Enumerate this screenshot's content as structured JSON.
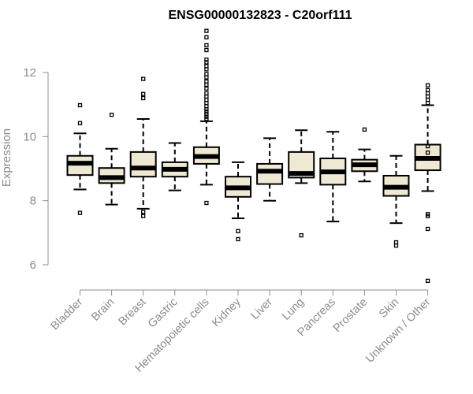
{
  "chart_data": {
    "type": "box",
    "title": "ENSG00000132823 - C20orf111",
    "xlabel": "",
    "ylabel": "Expression",
    "ylim": [
      5.3,
      13.5
    ],
    "yticks": [
      6,
      8,
      10,
      12
    ],
    "grid": false,
    "legend": "none",
    "colors": {
      "box_fill": "#efe8d2",
      "box_stroke": "#000000",
      "axis": "#8c8c8c"
    },
    "categories": [
      "Bladder",
      "Brain",
      "Breast",
      "Gastric",
      "Hematopoietic cells",
      "Kidney",
      "Liver",
      "Lung",
      "Pancreas",
      "Prostate",
      "Skin",
      "Unknown / Other"
    ],
    "boxes": [
      {
        "q1": 8.8,
        "median": 9.17,
        "q3": 9.4,
        "whisker_low": 8.35,
        "whisker_high": 10.1,
        "outliers": [
          7.62,
          10.42,
          10.98
        ]
      },
      {
        "q1": 8.55,
        "median": 8.72,
        "q3": 9.02,
        "whisker_low": 7.88,
        "whisker_high": 9.62,
        "outliers": [
          10.68
        ]
      },
      {
        "q1": 8.75,
        "median": 9.02,
        "q3": 9.52,
        "whisker_low": 7.75,
        "whisker_high": 10.55,
        "outliers": [
          7.52,
          7.65,
          11.2,
          11.33,
          11.8
        ]
      },
      {
        "q1": 8.75,
        "median": 8.98,
        "q3": 9.2,
        "whisker_low": 8.32,
        "whisker_high": 9.8,
        "outliers": []
      },
      {
        "q1": 9.15,
        "median": 9.38,
        "q3": 9.67,
        "whisker_low": 8.5,
        "whisker_high": 10.48,
        "outliers": [
          7.93,
          10.55,
          10.62,
          10.7,
          10.78,
          10.85,
          10.95,
          11.05,
          11.15,
          11.25,
          11.35,
          11.5,
          11.62,
          11.72,
          11.85,
          11.95,
          12.1,
          12.2,
          12.32,
          12.4,
          12.7,
          12.85,
          13.1,
          13.3
        ]
      },
      {
        "q1": 8.12,
        "median": 8.4,
        "q3": 8.75,
        "whisker_low": 7.45,
        "whisker_high": 9.2,
        "outliers": [
          6.8,
          7.05
        ]
      },
      {
        "q1": 8.52,
        "median": 8.92,
        "q3": 9.15,
        "whisker_low": 8.0,
        "whisker_high": 9.95,
        "outliers": []
      },
      {
        "q1": 8.72,
        "median": 8.85,
        "q3": 9.52,
        "whisker_low": 8.55,
        "whisker_high": 10.2,
        "outliers": [
          6.92
        ]
      },
      {
        "q1": 8.5,
        "median": 8.9,
        "q3": 9.32,
        "whisker_low": 7.35,
        "whisker_high": 10.15,
        "outliers": []
      },
      {
        "q1": 8.92,
        "median": 9.12,
        "q3": 9.28,
        "whisker_low": 8.6,
        "whisker_high": 9.6,
        "outliers": [
          10.22
        ]
      },
      {
        "q1": 8.15,
        "median": 8.42,
        "q3": 8.78,
        "whisker_low": 7.3,
        "whisker_high": 9.4,
        "outliers": [
          6.6,
          6.7
        ]
      },
      {
        "q1": 8.95,
        "median": 9.32,
        "q3": 9.75,
        "whisker_low": 8.3,
        "whisker_high": 10.98,
        "outliers": [
          5.5,
          7.12,
          7.52,
          7.58,
          9.5,
          9.7,
          11.05,
          11.15,
          11.25,
          11.35,
          11.45,
          11.6
        ]
      }
    ]
  }
}
